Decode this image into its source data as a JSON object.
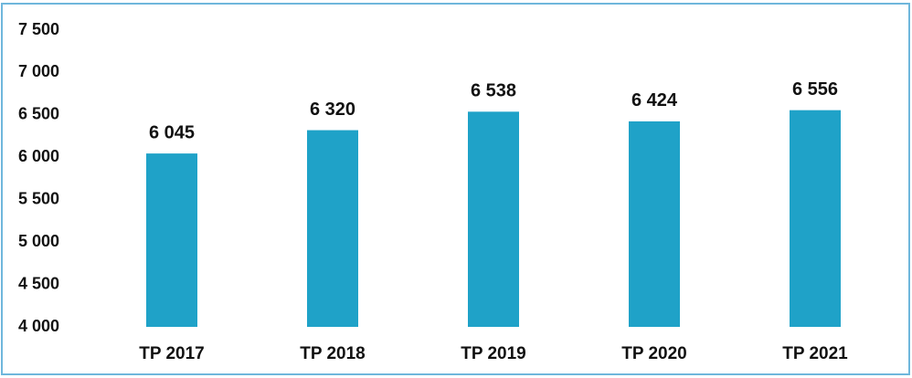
{
  "chart_data": {
    "type": "bar",
    "categories": [
      "TP 2017",
      "TP 2018",
      "TP 2019",
      "TP 2020",
      "TP 2021"
    ],
    "values": [
      6045,
      6320,
      6538,
      6424,
      6556
    ],
    "value_labels": [
      "6 045",
      "6 320",
      "6 538",
      "6 424",
      "6 556"
    ],
    "color": "#1fa2c8",
    "ylim": [
      4000,
      7500
    ],
    "yticks": [
      {
        "value": 4000,
        "label": "4 000"
      },
      {
        "value": 4500,
        "label": "4 500"
      },
      {
        "value": 5000,
        "label": "5 000"
      },
      {
        "value": 5500,
        "label": "5 500"
      },
      {
        "value": 6000,
        "label": "6 000"
      },
      {
        "value": 6500,
        "label": "6 500"
      },
      {
        "value": 7000,
        "label": "7 000"
      },
      {
        "value": 7500,
        "label": "7 500"
      }
    ],
    "grid": false
  }
}
